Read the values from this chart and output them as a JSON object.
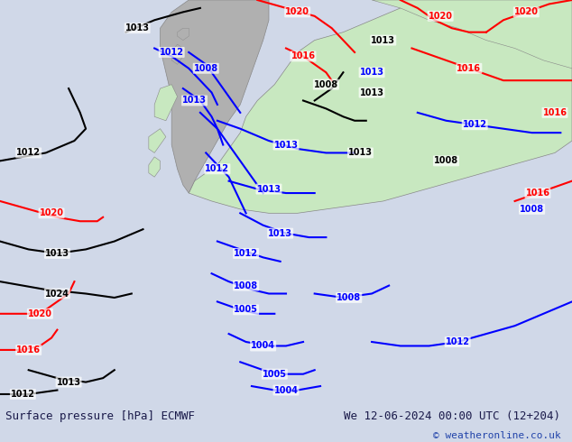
{
  "title_left": "Surface pressure [hPa] ECMWF",
  "title_right": "We 12-06-2024 00:00 UTC (12+204)",
  "copyright": "© weatheronline.co.uk",
  "bg_color": "#d0d8e8",
  "land_color": "#c8e8c0",
  "border_color": "#888888",
  "text_color_black": "#000000",
  "text_color_blue": "#0000cc",
  "text_color_red": "#cc0000",
  "footer_bg": "#e8eaf0",
  "footer_text_color": "#1a1a4a",
  "figsize": [
    6.34,
    4.9
  ],
  "dpi": 100
}
